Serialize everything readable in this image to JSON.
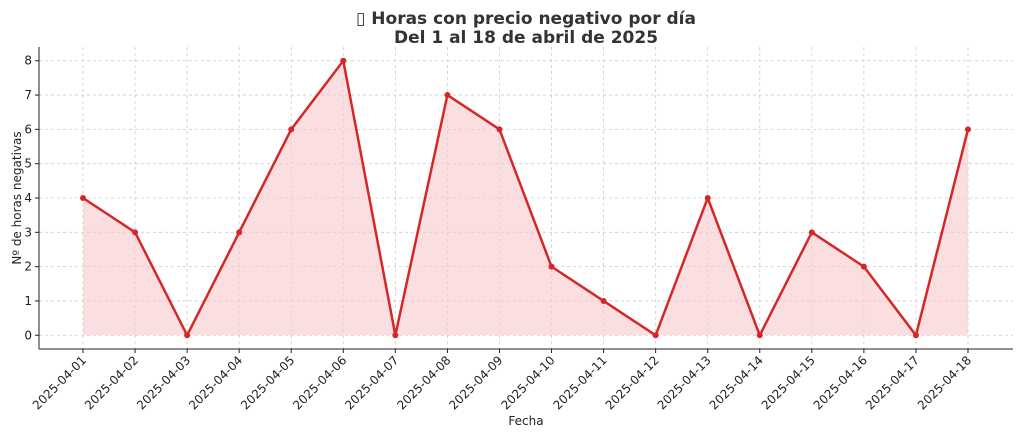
{
  "chart_data": {
    "type": "line",
    "title_icon": "▯",
    "title": "Horas con precio negativo por día",
    "subtitle": "Del 1 al 18 de abril de 2025",
    "xlabel": "Fecha",
    "ylabel": "Nº de horas negativas",
    "categories": [
      "2025-04-01",
      "2025-04-02",
      "2025-04-03",
      "2025-04-04",
      "2025-04-05",
      "2025-04-06",
      "2025-04-07",
      "2025-04-08",
      "2025-04-09",
      "2025-04-10",
      "2025-04-11",
      "2025-04-12",
      "2025-04-13",
      "2025-04-14",
      "2025-04-15",
      "2025-04-16",
      "2025-04-17",
      "2025-04-18"
    ],
    "series": [
      {
        "values": [
          4,
          3,
          0,
          3,
          6,
          8,
          0,
          7,
          6,
          2,
          1,
          0,
          4,
          0,
          3,
          2,
          0,
          6
        ]
      }
    ],
    "ylim": [
      -0.4,
      8.4
    ],
    "yticks": [
      0,
      1,
      2,
      3,
      4,
      5,
      6,
      7,
      8
    ],
    "grid": true,
    "area_fill": true,
    "colors": {
      "line": "#d62728",
      "fill": "#f8c9cb"
    }
  }
}
